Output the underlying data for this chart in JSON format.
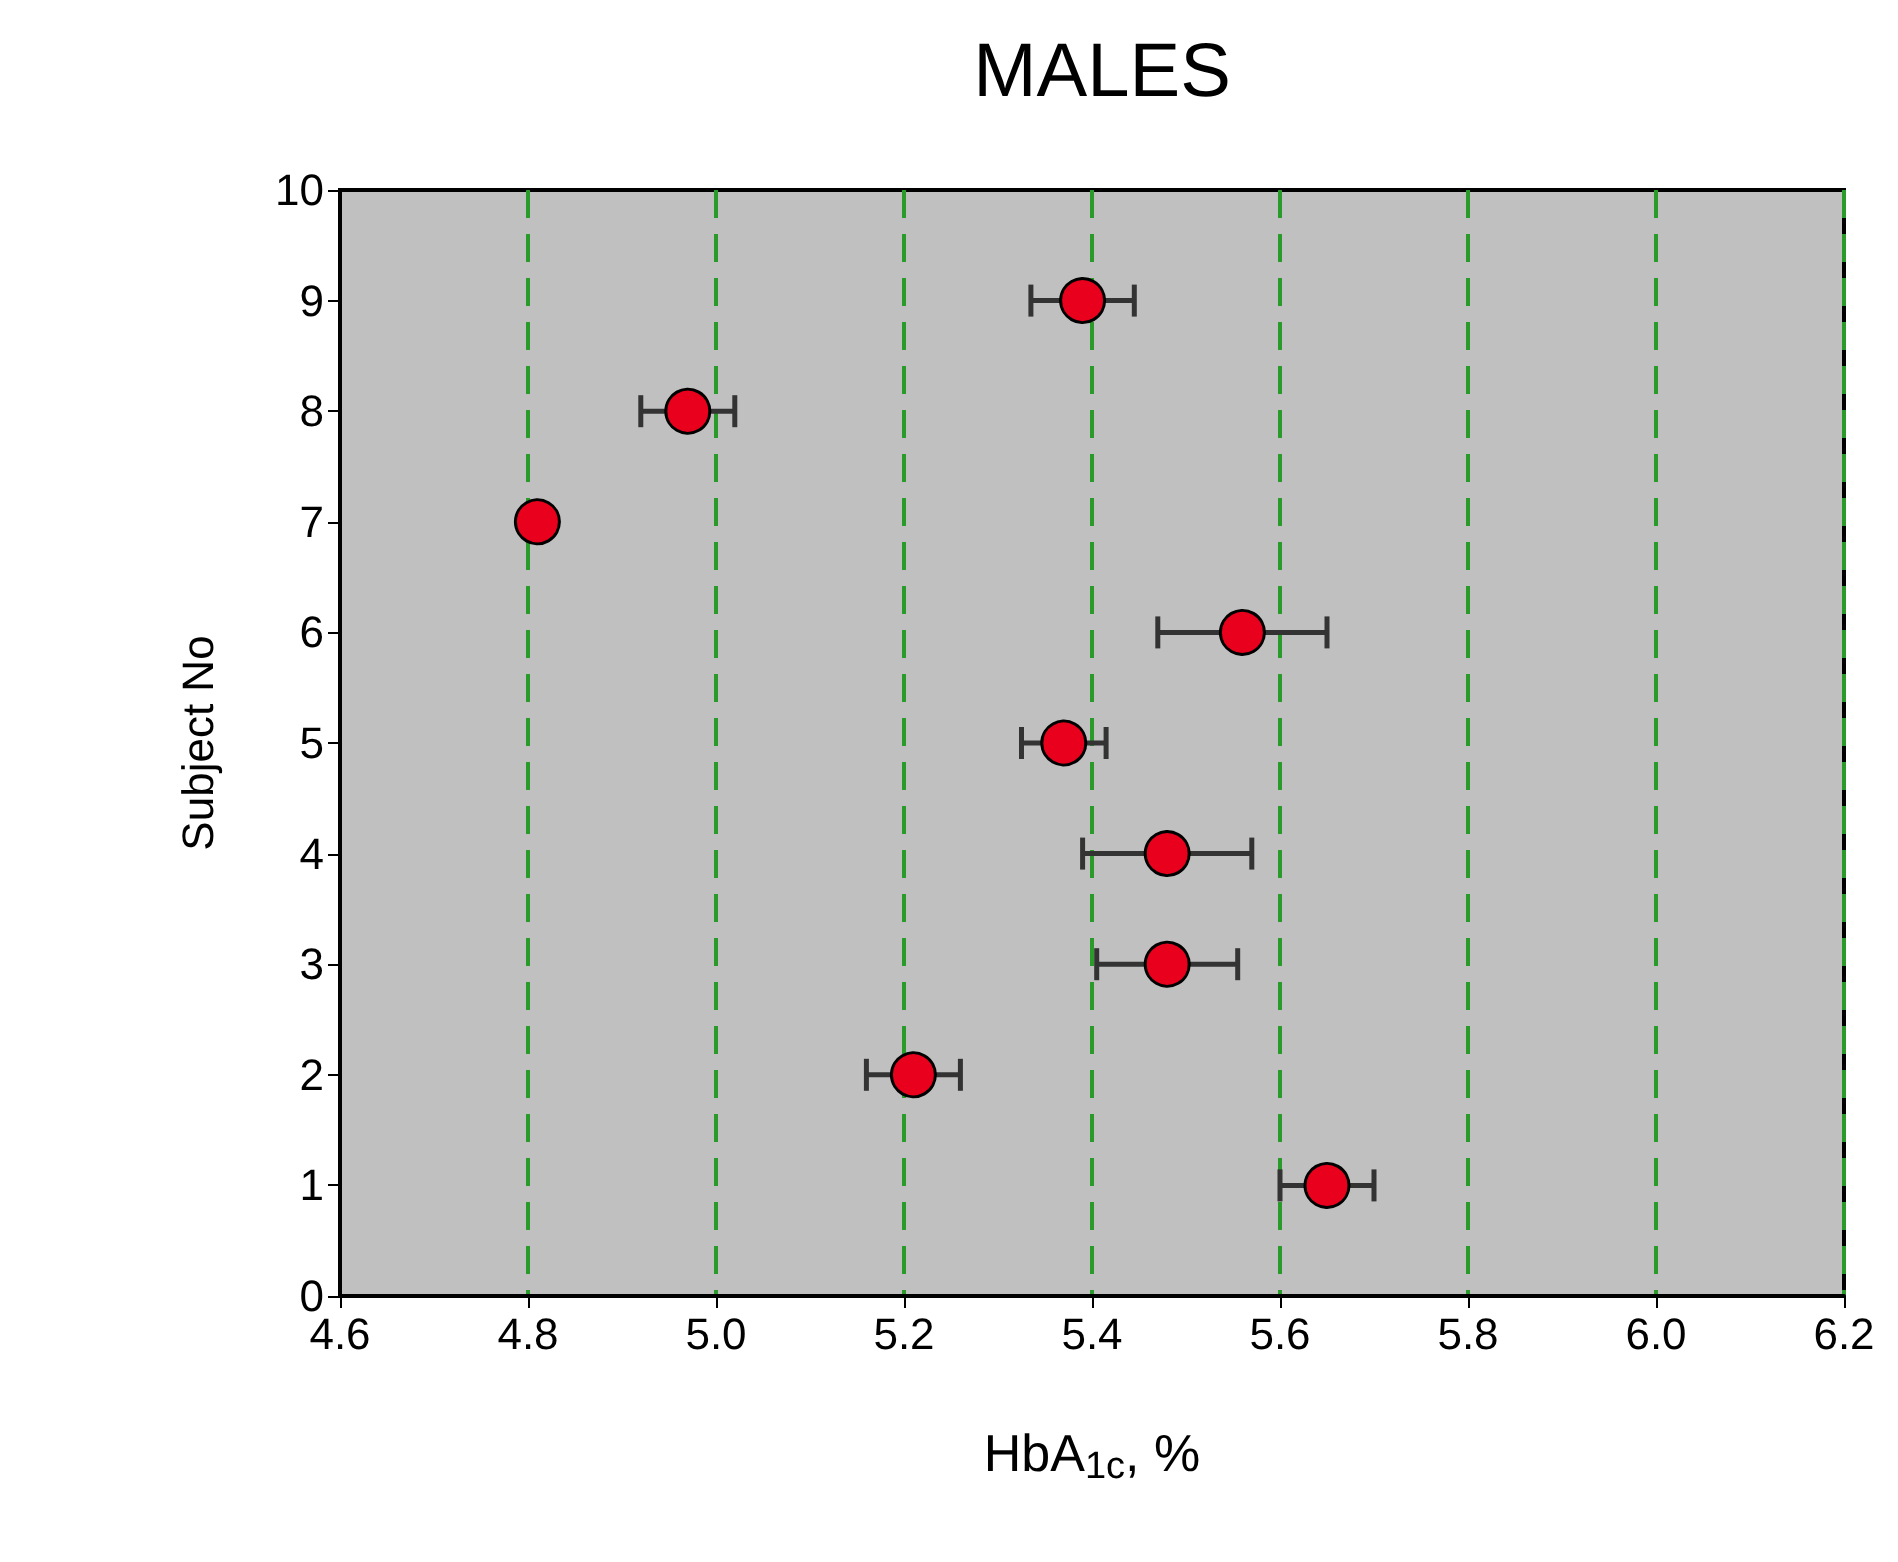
{
  "chart_data": {
    "type": "scatter",
    "title": "MALES",
    "xlabel": "HbA$_{1c}$, %",
    "ylabel": "Subject No",
    "x": [
      5.65,
      5.21,
      5.48,
      5.48,
      5.37,
      5.56,
      4.81,
      4.97,
      5.39
    ],
    "values": [
      1,
      2,
      3,
      4,
      5,
      6,
      7,
      8,
      9
    ],
    "xerrors": [
      0.05,
      0.05,
      0.075,
      0.09,
      0.045,
      0.09,
      null,
      0.05,
      0.055
    ],
    "color": "#e8001c",
    "marker": "circle",
    "xlim": [
      4.6,
      6.2
    ],
    "xticks": [
      4.6,
      4.8,
      {
        "value": 5,
        "label": "5.0"
      },
      5.2,
      5.4,
      5.6,
      5.8,
      {
        "value": 6,
        "label": "6.0"
      },
      6.2
    ],
    "ylim": [
      0,
      10
    ],
    "yticks": [
      0,
      1,
      2,
      3,
      4,
      5,
      6,
      7,
      8,
      9,
      10
    ],
    "grid": "x"
  }
}
